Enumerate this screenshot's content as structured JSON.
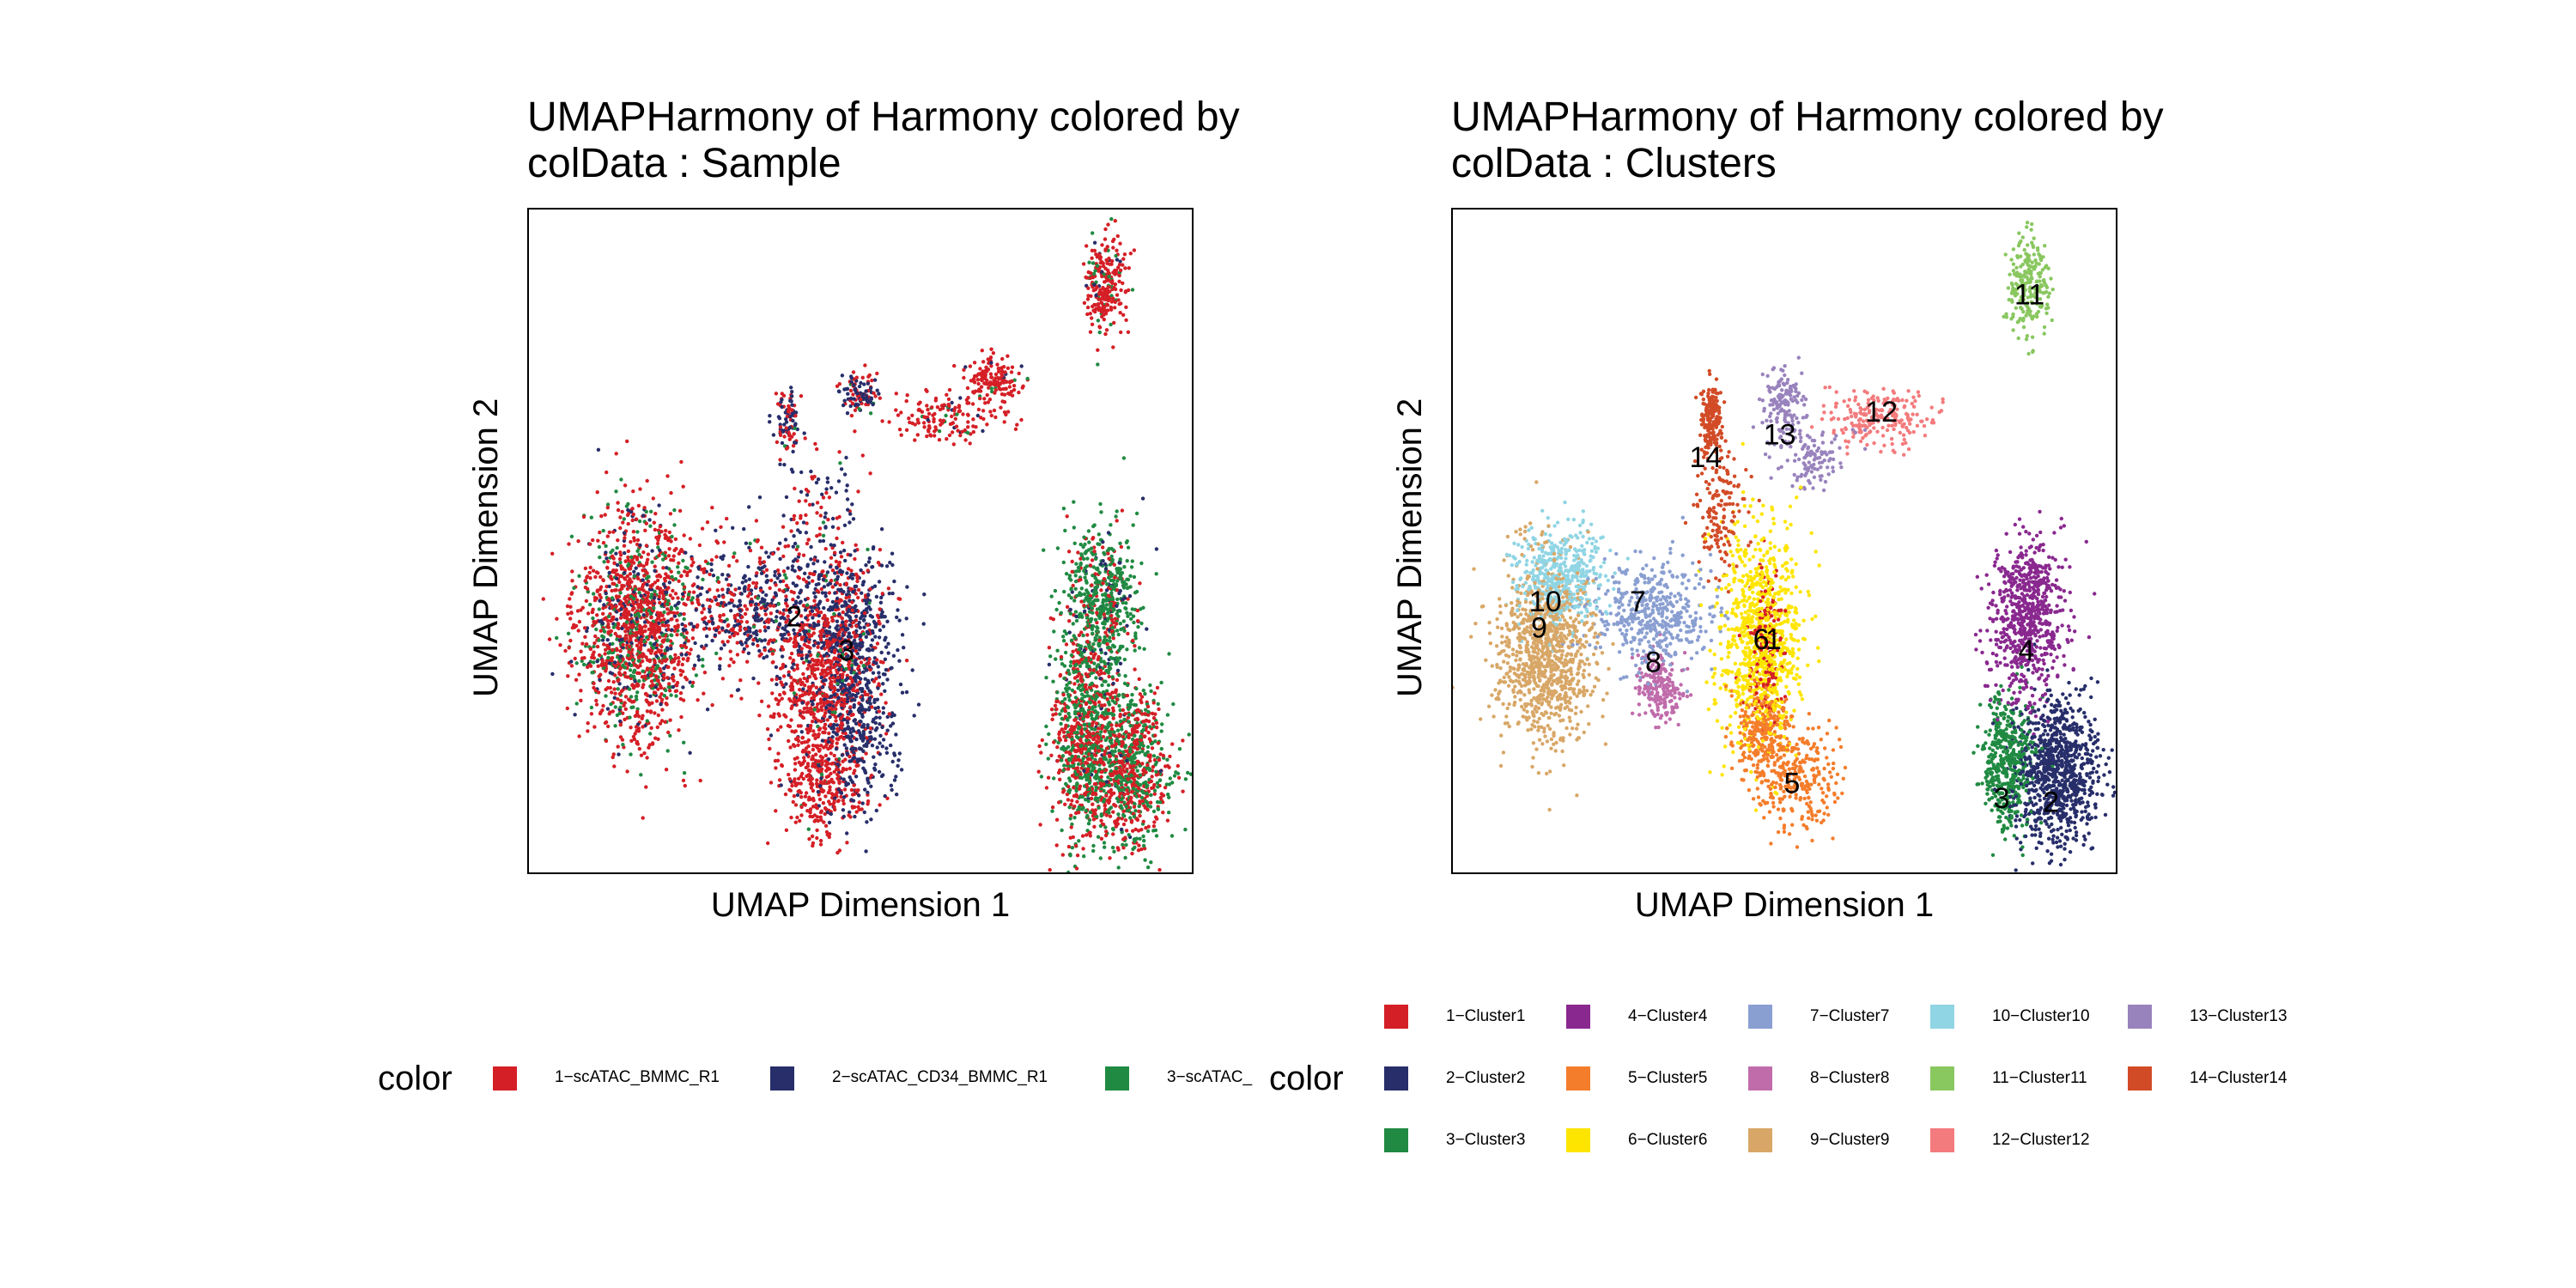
{
  "chart_data": [
    {
      "type": "scatter",
      "title_line1": "UMAPHarmony of Harmony  colored by",
      "title_line2": "colData :  Sample",
      "xlabel": "UMAP Dimension 1",
      "ylabel": "UMAP Dimension 2",
      "legend_title": "color",
      "grid": false,
      "axis_ticks": false,
      "legend": [
        {
          "label": "1−scATAC_BMMC_R1",
          "color": "#D51F26"
        },
        {
          "label": "2−scATAC_CD34_BMMC_R1",
          "color": "#272E6A"
        },
        {
          "label": "3−scATAC_",
          "color": "#208A42"
        }
      ],
      "annotations": [
        "2",
        "3"
      ],
      "groups": [
        {
          "name": "g_left_blob",
          "mix": [
            0.68,
            0.12,
            0.2
          ],
          "n": 1500,
          "ellipses": [
            [
              -9.5,
              1.0,
              1.3,
              2.0
            ]
          ]
        },
        {
          "name": "g_central",
          "mix": [
            0.4,
            0.55,
            0.05
          ],
          "n": 600,
          "ellipses": [
            [
              -5.5,
              1.5,
              1.8,
              1.2
            ]
          ]
        },
        {
          "name": "g_central_right",
          "mix": [
            0.15,
            0.85,
            0.0
          ],
          "n": 700,
          "ellipses": [
            [
              -2.5,
              1.0,
              1.0,
              1.3
            ],
            [
              -2.2,
              -1.8,
              0.8,
              1.6
            ]
          ]
        },
        {
          "name": "g_red_arm",
          "mix": [
            0.92,
            0.06,
            0.02
          ],
          "n": 600,
          "ellipses": [
            [
              -4.0,
              -1.0,
              0.9,
              1.3
            ],
            [
              -3.5,
              -3.2,
              0.8,
              0.9
            ]
          ]
        },
        {
          "name": "g_yellow_region",
          "mix": [
            0.7,
            0.25,
            0.05
          ],
          "n": 500,
          "ellipses": [
            [
              -3.0,
              0.2,
              0.8,
              1.6
            ]
          ]
        },
        {
          "name": "g_upper_spurs",
          "mix": [
            0.4,
            0.55,
            0.05
          ],
          "n": 300,
          "ellipses": [
            [
              -4.6,
              6.5,
              0.25,
              0.6
            ],
            [
              -2.3,
              7.2,
              0.4,
              0.4
            ],
            [
              -3.5,
              4.0,
              0.9,
              1.2
            ]
          ]
        },
        {
          "name": "g_upper_right_tail",
          "mix": [
            0.9,
            0.05,
            0.05
          ],
          "n": 300,
          "ellipses": [
            [
              0.5,
              6.5,
              1.2,
              0.5
            ],
            [
              2.0,
              7.5,
              0.6,
              0.4
            ]
          ]
        },
        {
          "name": "g_top_right",
          "mix": [
            0.8,
            0.05,
            0.15
          ],
          "n": 250,
          "ellipses": [
            [
              5.7,
              10.0,
              0.45,
              0.9
            ]
          ]
        },
        {
          "name": "g_right_lower",
          "mix": [
            0.5,
            0.02,
            0.48
          ],
          "n": 1700,
          "ellipses": [
            [
              6.5,
              -2.8,
              0.9,
              1.4
            ],
            [
              5.0,
              -1.8,
              0.7,
              2.0
            ]
          ]
        },
        {
          "name": "g_right_upper",
          "mix": [
            0.2,
            0.1,
            0.7
          ],
          "n": 600,
          "ellipses": [
            [
              5.6,
              1.5,
              0.8,
              1.4
            ]
          ]
        }
      ],
      "xlim": [
        -13,
        8.5
      ],
      "ylim": [
        -5.5,
        12
      ]
    },
    {
      "type": "scatter",
      "title_line1": "UMAPHarmony of Harmony  colored by",
      "title_line2": "colData :  Clusters",
      "xlabel": "UMAP Dimension 1",
      "ylabel": "UMAP Dimension 2",
      "legend_title": "color",
      "grid": false,
      "axis_ticks": false,
      "legend": [
        {
          "label": "1−Cluster1",
          "color": "#D51F26"
        },
        {
          "label": "2−Cluster2",
          "color": "#272E6A"
        },
        {
          "label": "3−Cluster3",
          "color": "#208A42"
        },
        {
          "label": "4−Cluster4",
          "color": "#89288F"
        },
        {
          "label": "5−Cluster5",
          "color": "#F47D2B"
        },
        {
          "label": "6−Cluster6",
          "color": "#FEE500"
        },
        {
          "label": "7−Cluster7",
          "color": "#8A9FD1"
        },
        {
          "label": "8−Cluster8",
          "color": "#C06CAB"
        },
        {
          "label": "9−Cluster9",
          "color": "#D8A767"
        },
        {
          "label": "10−Cluster10",
          "color": "#90D5E4"
        },
        {
          "label": "11−Cluster11",
          "color": "#89C75F"
        },
        {
          "label": "12−Cluster12",
          "color": "#F37B7D"
        },
        {
          "label": "13−Cluster13",
          "color": "#9983BD"
        },
        {
          "label": "14−Cluster14",
          "color": "#D24B27"
        }
      ],
      "clusters": [
        {
          "label": "1",
          "n": 180,
          "ellipses": [
            [
              -2.8,
              0.5,
              0.4,
              1.2
            ]
          ]
        },
        {
          "label": "2",
          "n": 900,
          "ellipses": [
            [
              6.6,
              -2.8,
              0.9,
              1.3
            ]
          ]
        },
        {
          "label": "3",
          "n": 450,
          "ellipses": [
            [
              5.0,
              -2.6,
              0.55,
              1.2
            ]
          ]
        },
        {
          "label": "4",
          "n": 700,
          "ellipses": [
            [
              5.6,
              1.2,
              0.8,
              1.4
            ]
          ]
        },
        {
          "label": "5",
          "n": 550,
          "ellipses": [
            [
              -1.8,
              -3.0,
              0.9,
              1.0
            ],
            [
              -3.0,
              -1.8,
              0.6,
              0.8
            ]
          ]
        },
        {
          "label": "6",
          "n": 900,
          "ellipses": [
            [
              -3.0,
              0.6,
              0.9,
              1.9
            ]
          ]
        },
        {
          "label": "7",
          "n": 450,
          "ellipses": [
            [
              -6.5,
              1.3,
              1.3,
              1.0
            ]
          ]
        },
        {
          "label": "8",
          "n": 200,
          "ellipses": [
            [
              -6.3,
              -0.6,
              0.5,
              0.6
            ]
          ]
        },
        {
          "label": "9",
          "n": 1000,
          "ellipses": [
            [
              -10.0,
              0.3,
              1.0,
              1.6
            ]
          ]
        },
        {
          "label": "10",
          "n": 450,
          "ellipses": [
            [
              -9.5,
              2.3,
              1.0,
              0.9
            ]
          ]
        },
        {
          "label": "11",
          "n": 220,
          "ellipses": [
            [
              5.7,
              10.0,
              0.45,
              0.9
            ]
          ]
        },
        {
          "label": "12",
          "n": 220,
          "ellipses": [
            [
              0.8,
              6.5,
              1.2,
              0.5
            ]
          ]
        },
        {
          "label": "13",
          "n": 260,
          "ellipses": [
            [
              -2.3,
              6.9,
              0.5,
              0.6
            ],
            [
              -1.5,
              5.5,
              0.8,
              0.6
            ]
          ]
        },
        {
          "label": "14",
          "n": 330,
          "ellipses": [
            [
              -4.6,
              6.5,
              0.25,
              0.6
            ],
            [
              -4.3,
              4.2,
              0.5,
              1.2
            ]
          ]
        }
      ],
      "annotations": [
        {
          "text": "11",
          "x": 5.7,
          "y": 9.7
        },
        {
          "text": "12",
          "x": 0.9,
          "y": 6.6
        },
        {
          "text": "13",
          "x": -2.4,
          "y": 6.0
        },
        {
          "text": "14",
          "x": -4.8,
          "y": 5.4
        },
        {
          "text": "10",
          "x": -10.0,
          "y": 1.6
        },
        {
          "text": "9",
          "x": -10.2,
          "y": 0.9
        },
        {
          "text": "7",
          "x": -7.0,
          "y": 1.6
        },
        {
          "text": "8",
          "x": -6.5,
          "y": 0.0
        },
        {
          "text": "6",
          "x": -3.0,
          "y": 0.6
        },
        {
          "text": "1",
          "x": -2.6,
          "y": 0.6
        },
        {
          "text": "4",
          "x": 5.6,
          "y": 0.3
        },
        {
          "text": "5",
          "x": -2.0,
          "y": -3.2
        },
        {
          "text": "3",
          "x": 4.8,
          "y": -3.6
        },
        {
          "text": "2",
          "x": 6.4,
          "y": -3.7
        }
      ],
      "xlim": [
        -13,
        8.5
      ],
      "ylim": [
        -5.5,
        12
      ]
    }
  ]
}
